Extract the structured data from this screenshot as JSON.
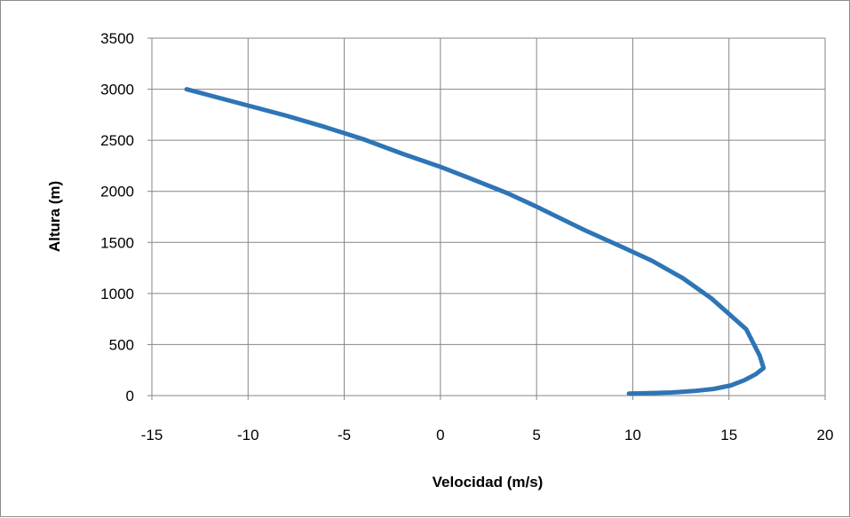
{
  "chart_data": {
    "type": "line",
    "title": "",
    "xlabel": "Velocidad (m/s)",
    "ylabel": "Altura (m)",
    "xlim": [
      -15,
      20
    ],
    "ylim": [
      0,
      3500
    ],
    "x_ticks": [
      "-15",
      "-10",
      "-5",
      "0",
      "5",
      "10",
      "15",
      "20"
    ],
    "y_ticks": [
      "0",
      "500",
      "1000",
      "1500",
      "2000",
      "2500",
      "3000",
      "3500"
    ],
    "grid": true,
    "legend": "none",
    "series_color": "#2e75b6",
    "series": [
      {
        "x": [
          9.8,
          11.0,
          12.0,
          13.2,
          14.2,
          15.1,
          15.8,
          16.4,
          16.8,
          16.6,
          16.3,
          15.9,
          15.0,
          14.1,
          12.6,
          11.0,
          9.5,
          7.5,
          5.0,
          3.5,
          1.5,
          0.0,
          -2.0,
          -4.0,
          -6.0,
          -8.0,
          -10.0,
          -12.0,
          -13.2
        ],
        "y": [
          20,
          25,
          30,
          45,
          65,
          100,
          150,
          210,
          270,
          390,
          500,
          650,
          800,
          950,
          1150,
          1320,
          1450,
          1620,
          1850,
          1980,
          2130,
          2240,
          2370,
          2510,
          2630,
          2740,
          2840,
          2940,
          3000
        ]
      }
    ]
  }
}
